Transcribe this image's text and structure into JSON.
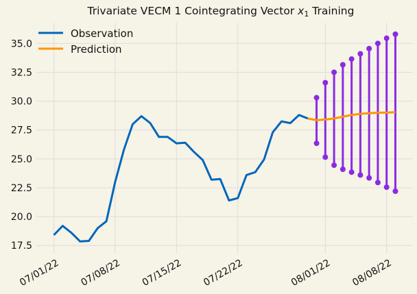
{
  "chart_data": {
    "type": "line",
    "title": "Trivariate VECM 1 Cointegrating Vector x₁ Training",
    "title_main": "Trivariate VECM 1 Cointegrating Vector ",
    "title_var": "x",
    "title_sub": "1",
    "title_tail": " Training",
    "xlabel": "",
    "ylabel": "",
    "ylim": [
      16.8,
      36.8
    ],
    "xlim": [
      "2022-06-29",
      "2022-08-11"
    ],
    "yticks": [
      17.5,
      20.0,
      22.5,
      25.0,
      27.5,
      30.0,
      32.5,
      35.0
    ],
    "ytick_labels": [
      "17.5",
      "20.0",
      "22.5",
      "25.0",
      "27.5",
      "30.0",
      "32.5",
      "35.0"
    ],
    "xticks": [
      "2022-07-01",
      "2022-07-08",
      "2022-07-15",
      "2022-07-22",
      "2022-08-01",
      "2022-08-08"
    ],
    "xtick_labels": [
      "07/01/22",
      "07/08/22",
      "07/15/22",
      "07/22/22",
      "08/01/22",
      "08/08/22"
    ],
    "grid": true,
    "legend_position": "top-left",
    "series": [
      {
        "name": "Observation",
        "color": "#0066bb",
        "x": [
          "2022-07-01",
          "2022-07-02",
          "2022-07-03",
          "2022-07-04",
          "2022-07-05",
          "2022-07-06",
          "2022-07-07",
          "2022-07-08",
          "2022-07-09",
          "2022-07-10",
          "2022-07-11",
          "2022-07-12",
          "2022-07-13",
          "2022-07-14",
          "2022-07-15",
          "2022-07-16",
          "2022-07-17",
          "2022-07-18",
          "2022-07-19",
          "2022-07-20",
          "2022-07-21",
          "2022-07-22",
          "2022-07-23",
          "2022-07-24",
          "2022-07-25",
          "2022-07-26",
          "2022-07-27",
          "2022-07-28",
          "2022-07-29",
          "2022-07-30"
        ],
        "values": [
          18.4,
          19.2,
          18.6,
          17.85,
          17.9,
          19.0,
          19.6,
          23.0,
          25.8,
          28.0,
          28.7,
          28.1,
          26.9,
          26.9,
          26.35,
          26.4,
          25.6,
          24.9,
          23.2,
          23.25,
          21.4,
          21.6,
          23.6,
          23.85,
          24.95,
          27.3,
          28.25,
          28.1,
          28.8,
          28.5
        ]
      },
      {
        "name": "Prediction",
        "color": "#ff9500",
        "x": [
          "2022-07-30",
          "2022-07-31",
          "2022-08-01",
          "2022-08-02",
          "2022-08-03",
          "2022-08-04",
          "2022-08-05",
          "2022-08-06",
          "2022-08-07",
          "2022-08-08",
          "2022-08-09"
        ],
        "values": [
          28.5,
          28.35,
          28.4,
          28.5,
          28.65,
          28.8,
          28.9,
          28.95,
          29.0,
          29.0,
          29.05
        ]
      }
    ],
    "interval_color": "#8a2be2",
    "intervals": {
      "x": [
        "2022-07-31",
        "2022-08-01",
        "2022-08-02",
        "2022-08-03",
        "2022-08-04",
        "2022-08-05",
        "2022-08-06",
        "2022-08-07",
        "2022-08-08",
        "2022-08-09"
      ],
      "low": [
        26.35,
        25.15,
        24.45,
        24.1,
        23.85,
        23.6,
        23.35,
        22.95,
        22.55,
        22.2
      ],
      "high": [
        30.3,
        31.6,
        32.5,
        33.15,
        33.65,
        34.1,
        34.55,
        35.0,
        35.45,
        35.8
      ]
    }
  }
}
